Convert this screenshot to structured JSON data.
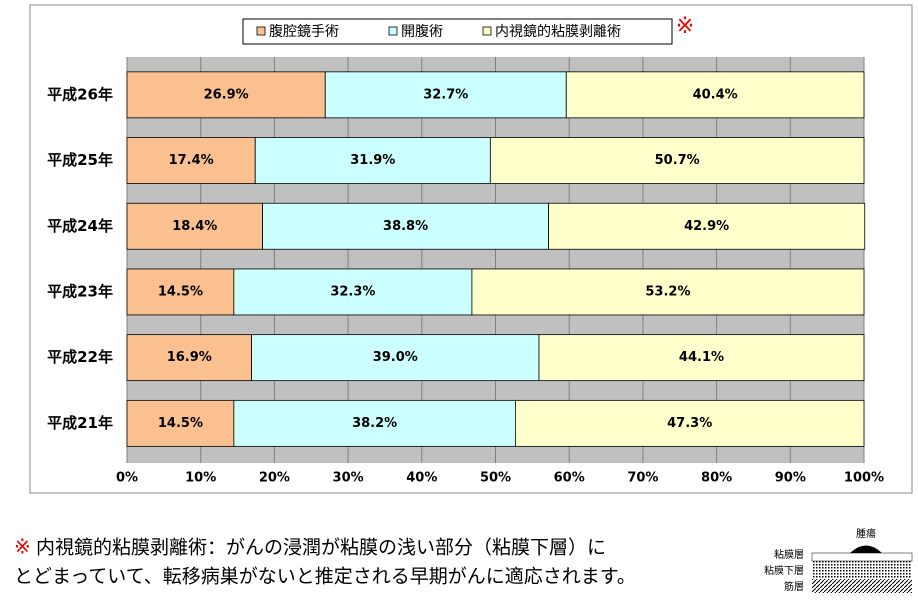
{
  "chart_data": {
    "type": "stacked-bar-horizontal",
    "categories": [
      "平成26年",
      "平成25年",
      "平成24年",
      "平成23年",
      "平成22年",
      "平成21年"
    ],
    "series": [
      {
        "name": "腹腔鏡手術",
        "color": "#fac090",
        "values": [
          26.9,
          17.4,
          18.4,
          14.5,
          16.9,
          14.5
        ],
        "value_labels": [
          "26.9%",
          "17.4%",
          "18.4%",
          "14.5%",
          "16.9%",
          "14.5%"
        ]
      },
      {
        "name": "開腹術",
        "color": "#ccffff",
        "values": [
          32.7,
          31.9,
          38.8,
          32.3,
          39.0,
          38.2
        ],
        "value_labels": [
          "32.7%",
          "31.9%",
          "38.8%",
          "32.3%",
          "39.0%",
          "38.2%"
        ]
      },
      {
        "name": "内視鏡的粘膜剥離術",
        "color": "#ffffcc",
        "values": [
          40.4,
          50.7,
          42.9,
          53.2,
          44.1,
          47.3
        ],
        "value_labels": [
          "40.4%",
          "50.7%",
          "42.9%",
          "53.2%",
          "44.1%",
          "47.3%"
        ]
      }
    ],
    "xlim": [
      0,
      100
    ],
    "xticks": [
      {
        "value": 0,
        "label": "0%"
      },
      {
        "value": 10,
        "label": "10%"
      },
      {
        "value": 20,
        "label": "20%"
      },
      {
        "value": 30,
        "label": "30%"
      },
      {
        "value": 40,
        "label": "40%"
      },
      {
        "value": 50,
        "label": "50%"
      },
      {
        "value": 60,
        "label": "60%"
      },
      {
        "value": 70,
        "label": "70%"
      },
      {
        "value": 80,
        "label": "80%"
      },
      {
        "value": 90,
        "label": "90%"
      },
      {
        "value": 100,
        "label": "100%"
      }
    ],
    "grid": true,
    "legend": "top",
    "legend_note": "※"
  },
  "footnote": {
    "mark": "※",
    "lines": [
      "内視鏡的粘膜剥離術：がんの浸潤が粘膜の浅い部分（粘膜下層）に",
      "とどまっていて、転移病巣がないと推定される早期がんに適応されます。"
    ]
  },
  "diagram": {
    "tumor": "腫瘍",
    "layers": [
      "粘膜層",
      "粘膜下層",
      "筋層"
    ]
  }
}
